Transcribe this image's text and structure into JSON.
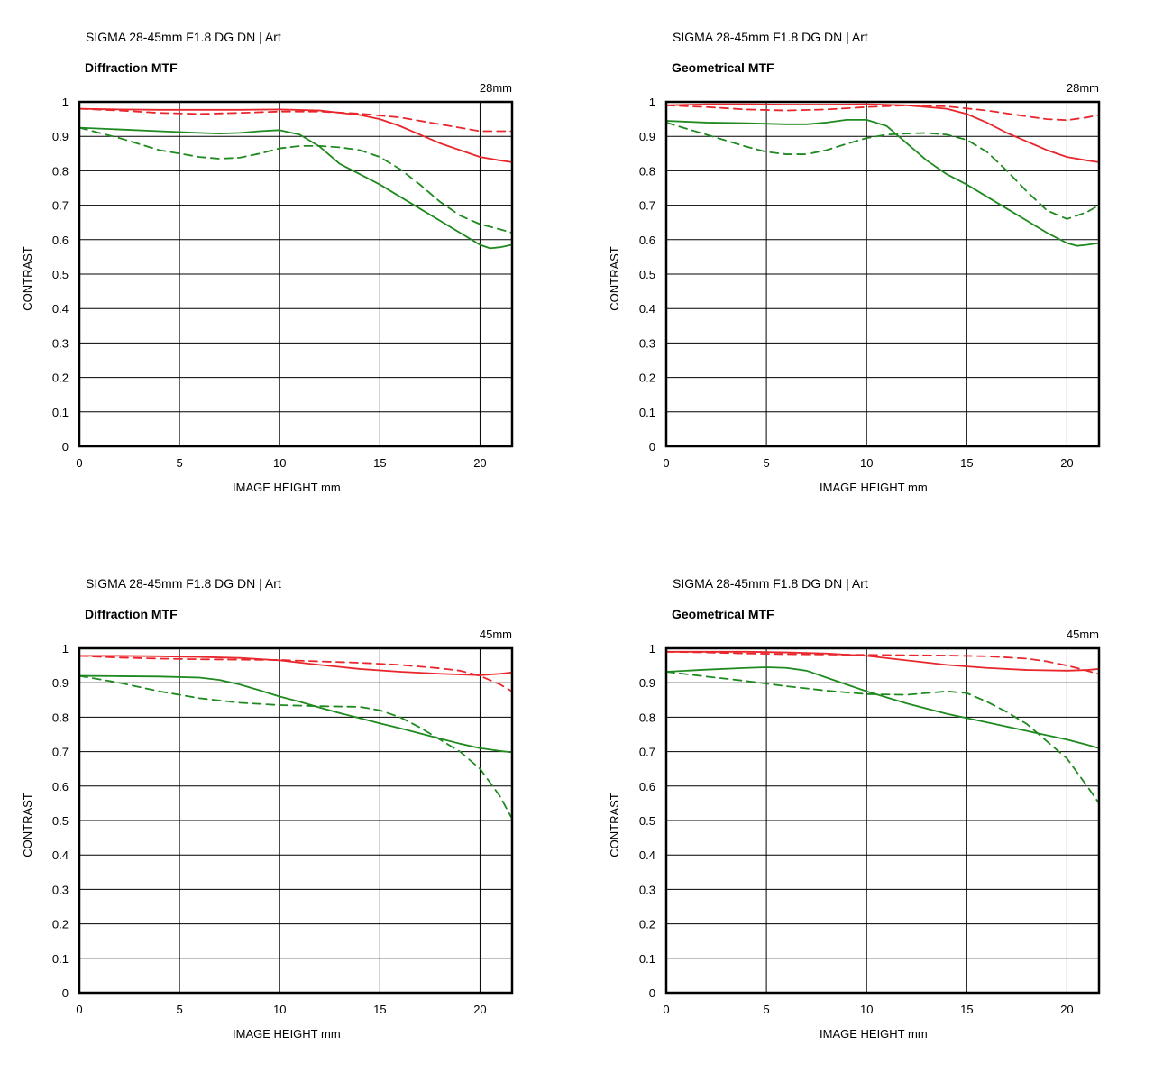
{
  "colors": {
    "sagittal_like": "#e8262b",
    "meridional_like": "#1f8a1f",
    "grid": "#000000"
  },
  "chart_data": [
    {
      "type": "line",
      "lens": "SIGMA 28-45mm F1.8 DG DN | Art",
      "title": "Diffraction MTF",
      "focal": "28mm",
      "xlabel": "IMAGE HEIGHT   mm",
      "ylabel": "CONTRAST",
      "xlim": [
        0,
        21.6
      ],
      "ylim": [
        0,
        1
      ],
      "xticks": [
        "0",
        "5",
        "10",
        "15",
        "20"
      ],
      "yticks": [
        "0",
        "0.1",
        "0.2",
        "0.3",
        "0.4",
        "0.5",
        "0.6",
        "0.7",
        "0.8",
        "0.9",
        "1"
      ],
      "grid": true,
      "series": [
        {
          "color": "#e8262b",
          "style": "solid",
          "x": [
            0,
            2,
            4,
            6,
            8,
            10,
            12,
            14,
            15,
            16,
            17,
            18,
            19,
            20,
            21,
            21.6
          ],
          "y": [
            0.98,
            0.978,
            0.977,
            0.977,
            0.977,
            0.978,
            0.975,
            0.962,
            0.95,
            0.93,
            0.905,
            0.88,
            0.86,
            0.84,
            0.83,
            0.825
          ]
        },
        {
          "color": "#e8262b",
          "style": "dashed",
          "x": [
            0,
            2,
            4,
            6,
            8,
            10,
            12,
            14,
            16,
            18,
            20,
            21.6
          ],
          "y": [
            0.98,
            0.975,
            0.968,
            0.965,
            0.968,
            0.972,
            0.972,
            0.966,
            0.955,
            0.935,
            0.915,
            0.915
          ]
        },
        {
          "color": "#1f8a1f",
          "style": "solid",
          "x": [
            0,
            2,
            4,
            6,
            7,
            8,
            9,
            10,
            11,
            12,
            13,
            14,
            15,
            16,
            17,
            18,
            19,
            20,
            20.5,
            21,
            21.6
          ],
          "y": [
            0.925,
            0.92,
            0.915,
            0.91,
            0.908,
            0.91,
            0.915,
            0.918,
            0.905,
            0.87,
            0.82,
            0.79,
            0.76,
            0.725,
            0.69,
            0.655,
            0.62,
            0.585,
            0.575,
            0.578,
            0.585
          ]
        },
        {
          "color": "#1f8a1f",
          "style": "dashed",
          "x": [
            0,
            2,
            4,
            6,
            7,
            8,
            9,
            10,
            11,
            12,
            13,
            14,
            15,
            16,
            17,
            18,
            19,
            20,
            21,
            21.6
          ],
          "y": [
            0.925,
            0.895,
            0.86,
            0.84,
            0.835,
            0.838,
            0.85,
            0.865,
            0.872,
            0.872,
            0.868,
            0.86,
            0.84,
            0.805,
            0.76,
            0.71,
            0.67,
            0.645,
            0.63,
            0.62
          ]
        }
      ]
    },
    {
      "type": "line",
      "lens": "SIGMA 28-45mm F1.8 DG DN | Art",
      "title": "Geometrical MTF",
      "focal": "28mm",
      "xlabel": "IMAGE HEIGHT   mm",
      "ylabel": "CONTRAST",
      "xlim": [
        0,
        21.6
      ],
      "ylim": [
        0,
        1
      ],
      "xticks": [
        "0",
        "5",
        "10",
        "15",
        "20"
      ],
      "yticks": [
        "0",
        "0.1",
        "0.2",
        "0.3",
        "0.4",
        "0.5",
        "0.6",
        "0.7",
        "0.8",
        "0.9",
        "1"
      ],
      "grid": true,
      "series": [
        {
          "color": "#e8262b",
          "style": "solid",
          "x": [
            0,
            2,
            4,
            6,
            8,
            10,
            12,
            14,
            15,
            16,
            17,
            18,
            19,
            20,
            21,
            21.6
          ],
          "y": [
            0.99,
            0.993,
            0.993,
            0.992,
            0.992,
            0.993,
            0.99,
            0.98,
            0.965,
            0.94,
            0.91,
            0.885,
            0.86,
            0.84,
            0.83,
            0.825
          ]
        },
        {
          "color": "#e8262b",
          "style": "dashed",
          "x": [
            0,
            2,
            4,
            6,
            8,
            10,
            12,
            14,
            16,
            18,
            19,
            20,
            21,
            21.6
          ],
          "y": [
            0.99,
            0.985,
            0.978,
            0.975,
            0.978,
            0.985,
            0.99,
            0.987,
            0.975,
            0.958,
            0.95,
            0.947,
            0.955,
            0.962
          ]
        },
        {
          "color": "#1f8a1f",
          "style": "solid",
          "x": [
            0,
            2,
            4,
            6,
            7,
            8,
            9,
            10,
            11,
            12,
            13,
            14,
            15,
            16,
            17,
            18,
            19,
            20,
            20.5,
            21,
            21.6
          ],
          "y": [
            0.945,
            0.94,
            0.938,
            0.935,
            0.935,
            0.94,
            0.948,
            0.948,
            0.93,
            0.88,
            0.83,
            0.79,
            0.76,
            0.725,
            0.69,
            0.655,
            0.62,
            0.59,
            0.582,
            0.585,
            0.59
          ]
        },
        {
          "color": "#1f8a1f",
          "style": "dashed",
          "x": [
            0,
            2,
            4,
            5,
            6,
            7,
            8,
            9,
            10,
            11,
            12,
            13,
            14,
            15,
            16,
            17,
            18,
            19,
            20,
            21,
            21.6
          ],
          "y": [
            0.94,
            0.905,
            0.87,
            0.855,
            0.848,
            0.848,
            0.86,
            0.878,
            0.895,
            0.905,
            0.908,
            0.91,
            0.905,
            0.89,
            0.855,
            0.8,
            0.74,
            0.685,
            0.66,
            0.68,
            0.7
          ]
        }
      ]
    },
    {
      "type": "line",
      "lens": "SIGMA 28-45mm F1.8 DG DN | Art",
      "title": "Diffraction MTF",
      "focal": "45mm",
      "xlabel": "IMAGE HEIGHT   mm",
      "ylabel": "CONTRAST",
      "xlim": [
        0,
        21.6
      ],
      "ylim": [
        0,
        1
      ],
      "xticks": [
        "0",
        "5",
        "10",
        "15",
        "20"
      ],
      "yticks": [
        "0",
        "0.1",
        "0.2",
        "0.3",
        "0.4",
        "0.5",
        "0.6",
        "0.7",
        "0.8",
        "0.9",
        "1"
      ],
      "grid": true,
      "series": [
        {
          "color": "#e8262b",
          "style": "solid",
          "x": [
            0,
            2,
            4,
            6,
            8,
            10,
            12,
            14,
            16,
            18,
            19,
            20,
            21,
            21.6
          ],
          "y": [
            0.978,
            0.978,
            0.977,
            0.975,
            0.972,
            0.965,
            0.952,
            0.94,
            0.932,
            0.926,
            0.924,
            0.922,
            0.926,
            0.93
          ]
        },
        {
          "color": "#e8262b",
          "style": "dashed",
          "x": [
            0,
            2,
            4,
            6,
            8,
            10,
            12,
            14,
            16,
            18,
            19,
            20,
            21,
            21.6
          ],
          "y": [
            0.978,
            0.973,
            0.97,
            0.968,
            0.967,
            0.966,
            0.962,
            0.958,
            0.952,
            0.942,
            0.935,
            0.92,
            0.895,
            0.875
          ]
        },
        {
          "color": "#1f8a1f",
          "style": "solid",
          "x": [
            0,
            2,
            4,
            6,
            7,
            8,
            9,
            10,
            11,
            12,
            13,
            14,
            15,
            16,
            17,
            18,
            19,
            20,
            21,
            21.6
          ],
          "y": [
            0.92,
            0.919,
            0.918,
            0.915,
            0.908,
            0.895,
            0.878,
            0.86,
            0.845,
            0.828,
            0.812,
            0.797,
            0.782,
            0.768,
            0.753,
            0.738,
            0.723,
            0.71,
            0.702,
            0.698
          ]
        },
        {
          "color": "#1f8a1f",
          "style": "dashed",
          "x": [
            0,
            2,
            4,
            6,
            8,
            10,
            12,
            14,
            15,
            16,
            17,
            18,
            19,
            20,
            21,
            21.6
          ],
          "y": [
            0.92,
            0.9,
            0.875,
            0.855,
            0.842,
            0.835,
            0.832,
            0.83,
            0.82,
            0.8,
            0.77,
            0.735,
            0.7,
            0.65,
            0.57,
            0.505
          ]
        }
      ]
    },
    {
      "type": "line",
      "lens": "SIGMA 28-45mm F1.8 DG DN | Art",
      "title": "Geometrical MTF",
      "focal": "45mm",
      "xlabel": "IMAGE HEIGHT   mm",
      "ylabel": "CONTRAST",
      "xlim": [
        0,
        21.6
      ],
      "ylim": [
        0,
        1
      ],
      "xticks": [
        "0",
        "5",
        "10",
        "15",
        "20"
      ],
      "yticks": [
        "0",
        "0.1",
        "0.2",
        "0.3",
        "0.4",
        "0.5",
        "0.6",
        "0.7",
        "0.8",
        "0.9",
        "1"
      ],
      "grid": true,
      "series": [
        {
          "color": "#e8262b",
          "style": "solid",
          "x": [
            0,
            2,
            4,
            6,
            8,
            10,
            12,
            14,
            16,
            18,
            20,
            21,
            21.6
          ],
          "y": [
            0.99,
            0.99,
            0.99,
            0.988,
            0.985,
            0.978,
            0.965,
            0.952,
            0.943,
            0.937,
            0.935,
            0.937,
            0.94
          ]
        },
        {
          "color": "#e8262b",
          "style": "dashed",
          "x": [
            0,
            2,
            4,
            6,
            8,
            10,
            12,
            14,
            16,
            18,
            19,
            20,
            21,
            21.6
          ],
          "y": [
            0.99,
            0.988,
            0.985,
            0.983,
            0.982,
            0.981,
            0.98,
            0.979,
            0.977,
            0.97,
            0.962,
            0.95,
            0.935,
            0.925
          ]
        },
        {
          "color": "#1f8a1f",
          "style": "solid",
          "x": [
            0,
            2,
            4,
            5,
            6,
            7,
            8,
            9,
            10,
            12,
            14,
            16,
            18,
            20,
            21,
            21.6
          ],
          "y": [
            0.932,
            0.938,
            0.943,
            0.945,
            0.943,
            0.935,
            0.915,
            0.895,
            0.875,
            0.84,
            0.81,
            0.785,
            0.76,
            0.735,
            0.72,
            0.71
          ]
        },
        {
          "color": "#1f8a1f",
          "style": "dashed",
          "x": [
            0,
            2,
            4,
            6,
            8,
            10,
            12,
            13,
            14,
            15,
            16,
            17,
            18,
            19,
            20,
            21,
            21.6
          ],
          "y": [
            0.932,
            0.918,
            0.905,
            0.89,
            0.877,
            0.867,
            0.865,
            0.87,
            0.875,
            0.87,
            0.845,
            0.815,
            0.78,
            0.73,
            0.68,
            0.6,
            0.55
          ]
        }
      ]
    }
  ]
}
